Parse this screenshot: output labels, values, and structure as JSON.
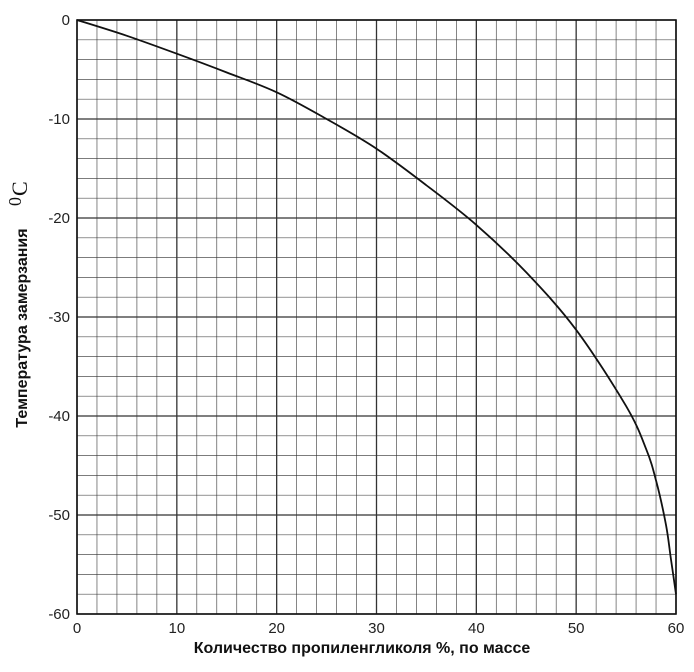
{
  "chart_data": {
    "type": "line",
    "title": "",
    "xlabel": "Количество пропиленгликоля %, по массе",
    "ylabel": "Температура замерзания",
    "ylabel_unit_prefix": "0",
    "ylabel_unit_base": "C",
    "xlim": [
      0,
      60
    ],
    "ylim": [
      -60,
      0
    ],
    "x_ticks": [
      0,
      10,
      20,
      30,
      40,
      50,
      60
    ],
    "y_ticks": [
      0,
      -10,
      -20,
      -30,
      -40,
      -50,
      -60
    ],
    "x_tick_labels": [
      "0",
      "10",
      "20",
      "30",
      "40",
      "50",
      "60"
    ],
    "y_tick_labels": [
      "0",
      "-10",
      "-20",
      "-30",
      "-40",
      "-50",
      "-60"
    ],
    "grid": true,
    "grid_minor_step": [
      2,
      2
    ],
    "series": [
      {
        "x": [
          0,
          5,
          10,
          15,
          20,
          25,
          30,
          35,
          40,
          45,
          50,
          55,
          57,
          58,
          59,
          59.5,
          60
        ],
        "y": [
          0,
          -1.6,
          -3.4,
          -5.3,
          -7.3,
          -10.0,
          -13.0,
          -16.7,
          -20.7,
          -25.5,
          -31.3,
          -39.0,
          -43.3,
          -46.5,
          -51.0,
          -54.5,
          -58.0
        ]
      }
    ],
    "colors": {
      "line": "#111111",
      "grid": "#333333",
      "background": "#ffffff"
    }
  }
}
